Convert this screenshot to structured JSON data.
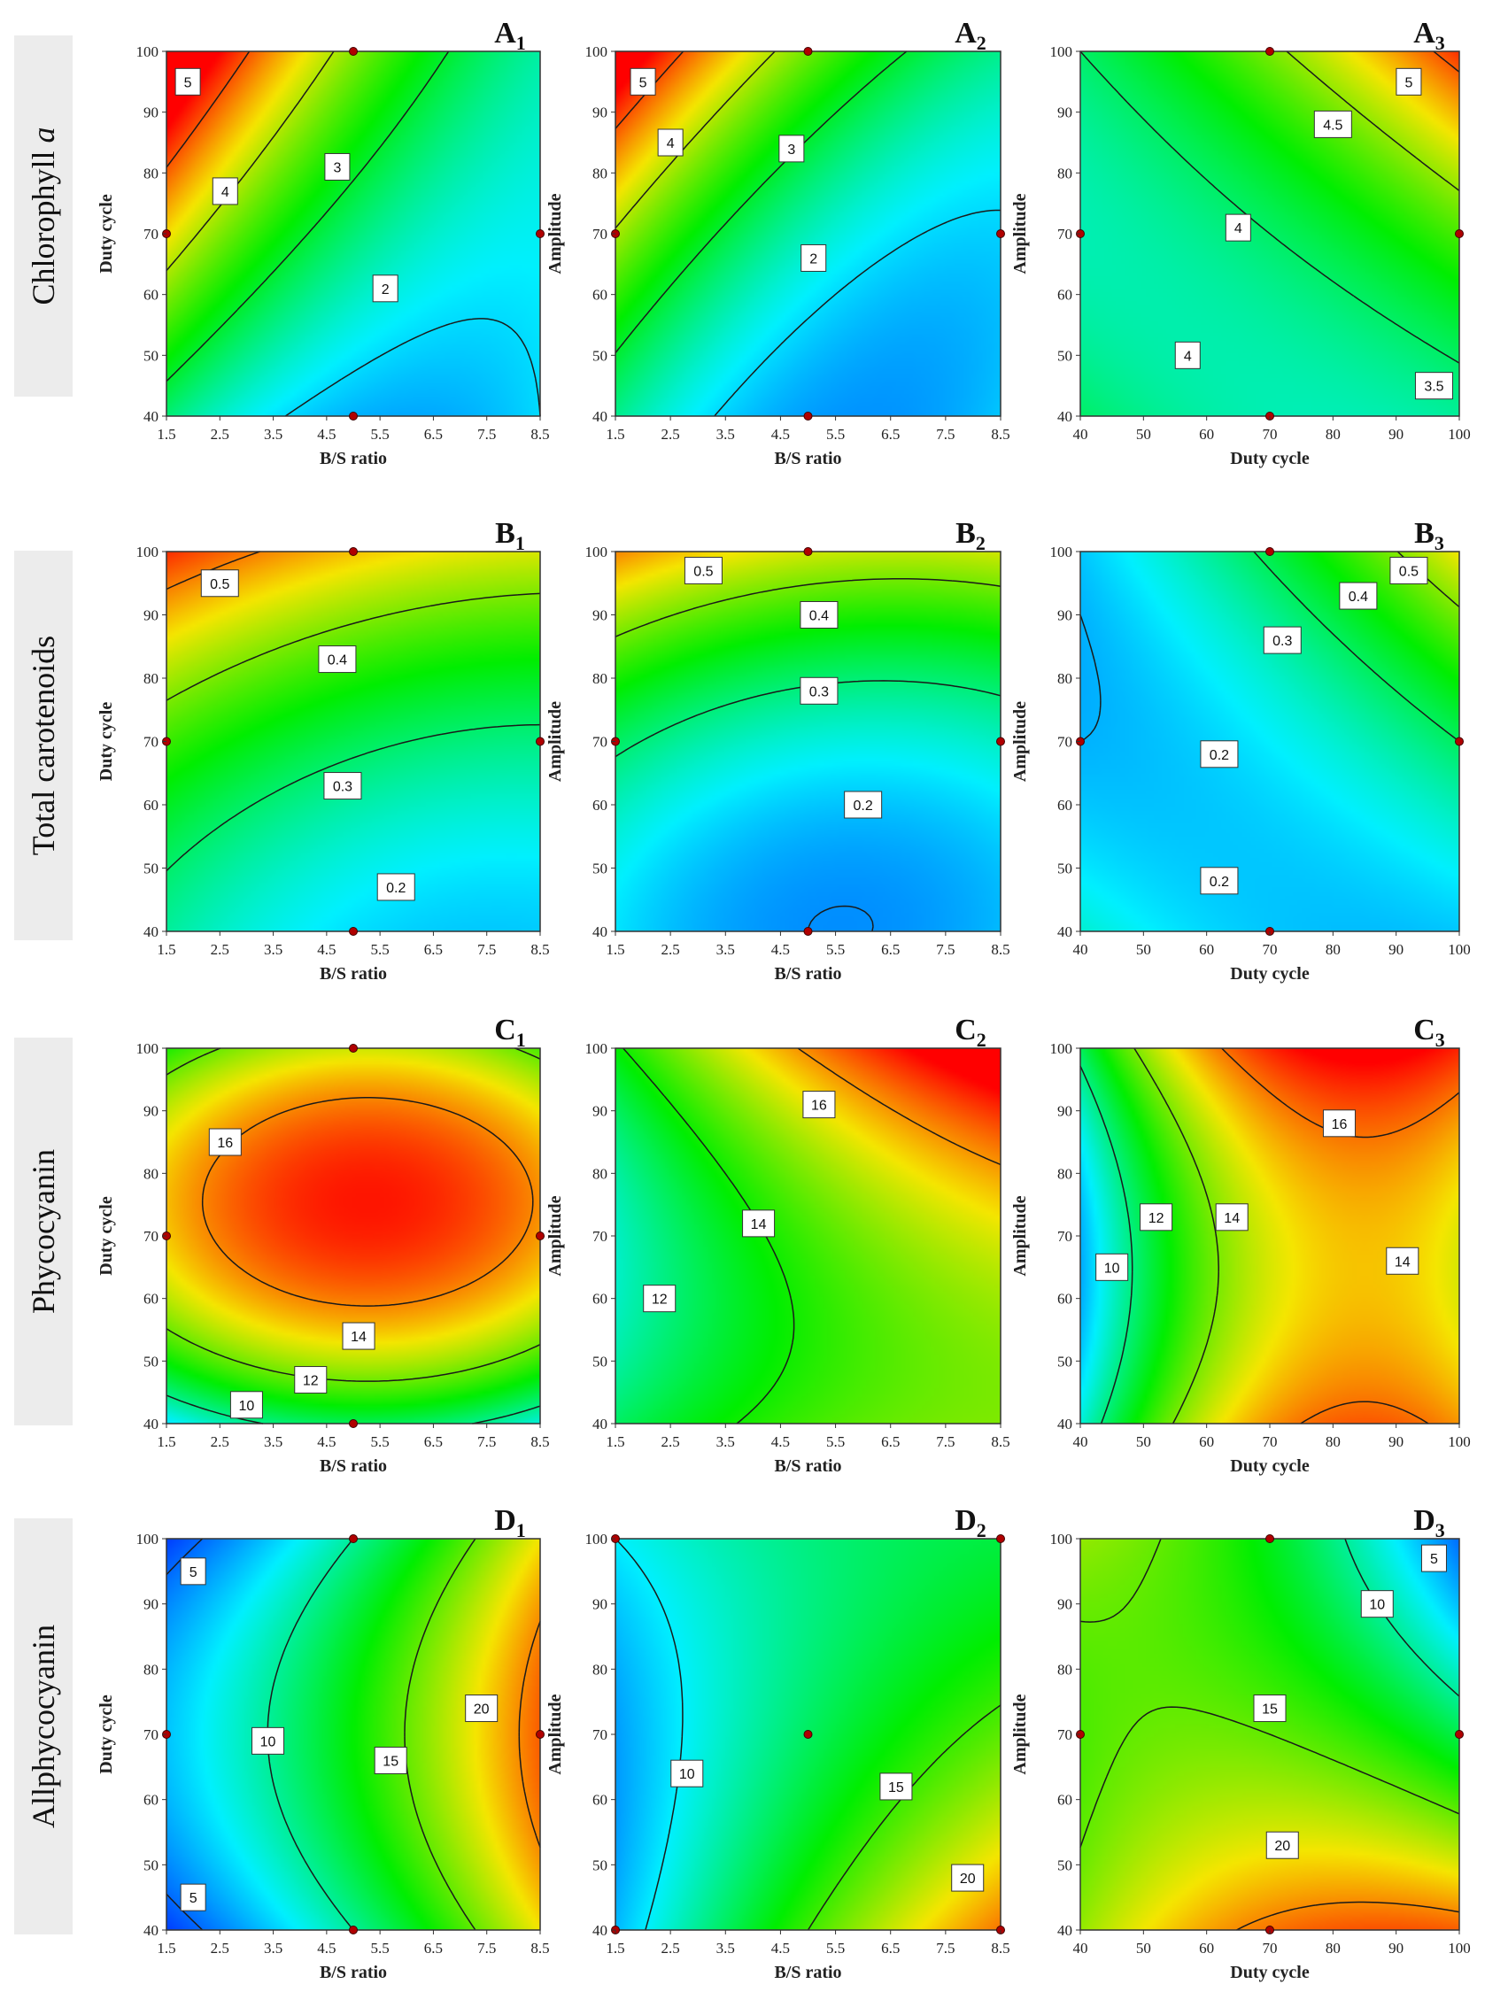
{
  "rows": [
    {
      "label": "Chlorophyll a",
      "label_main": "Chlorophyll ",
      "label_italic": "a"
    },
    {
      "label": "Total carotenoids"
    },
    {
      "label": "Phycocyanin"
    },
    {
      "label": "Allphycocyanin"
    }
  ],
  "colors": {
    "low": "#0010ff",
    "mid": "#00ee00",
    "high": "#ff0000",
    "row_label_bg": "#ececec"
  },
  "chart_data": [
    {
      "id": "A1",
      "title": "A",
      "sub": "1",
      "type": "contour",
      "xlabel": "B/S ratio",
      "ylabel": "Duty cycle",
      "xlim": [
        1.5,
        8.5
      ],
      "ylim": [
        40,
        100
      ],
      "xticks": [
        "1.5",
        "2.5",
        "3.5",
        "4.5",
        "5.5",
        "6.5",
        "7.5",
        "8.5"
      ],
      "yticks": [
        "40",
        "50",
        "60",
        "70",
        "80",
        "90",
        "100"
      ],
      "zrange": [
        1.0,
        5.4
      ],
      "model": {
        "c": 2.7,
        "a": -1.1,
        "b": 1.0,
        "ab": -0.75,
        "aa": 0.55,
        "bb": 0.1
      },
      "levels": [
        2,
        3,
        4,
        5
      ],
      "labels": [
        {
          "text": "5",
          "x": 1.9,
          "y": 95
        },
        {
          "text": "4",
          "x": 2.6,
          "y": 77
        },
        {
          "text": "3",
          "x": 4.7,
          "y": 81
        },
        {
          "text": "2",
          "x": 5.6,
          "y": 61
        }
      ],
      "design_points": [
        [
          5,
          100
        ],
        [
          1.5,
          70
        ],
        [
          8.5,
          70
        ],
        [
          5,
          40
        ]
      ]
    },
    {
      "id": "A2",
      "title": "A",
      "sub": "2",
      "type": "contour",
      "xlabel": "B/S ratio",
      "ylabel": "Amplitude",
      "xlim": [
        1.5,
        8.5
      ],
      "ylim": [
        40,
        100
      ],
      "xticks": [
        "1.5",
        "2.5",
        "3.5",
        "4.5",
        "5.5",
        "6.5",
        "7.5",
        "8.5"
      ],
      "yticks": [
        "40",
        "50",
        "60",
        "70",
        "80",
        "90",
        "100"
      ],
      "zrange": [
        1.0,
        5.4
      ],
      "model": {
        "c": 2.4,
        "a": -1.0,
        "b": 1.0,
        "ab": -0.65,
        "aa": 0.55,
        "bb": 0.3
      },
      "levels": [
        2,
        3,
        4,
        5
      ],
      "labels": [
        {
          "text": "5",
          "x": 2.0,
          "y": 95
        },
        {
          "text": "4",
          "x": 2.5,
          "y": 85
        },
        {
          "text": "3",
          "x": 4.7,
          "y": 84
        },
        {
          "text": "2",
          "x": 5.1,
          "y": 66
        }
      ],
      "design_points": [
        [
          5,
          100
        ],
        [
          1.5,
          70
        ],
        [
          8.5,
          70
        ],
        [
          5,
          40
        ]
      ]
    },
    {
      "id": "A3",
      "title": "A",
      "sub": "3",
      "type": "contour",
      "xlabel": "Duty cycle",
      "ylabel": "Amplitude",
      "xlim": [
        40,
        100
      ],
      "ylim": [
        40,
        100
      ],
      "xticks": [
        "40",
        "50",
        "60",
        "70",
        "80",
        "90",
        "100"
      ],
      "yticks": [
        "40",
        "50",
        "60",
        "70",
        "80",
        "90",
        "100"
      ],
      "zrange": [
        3.2,
        5.2
      ],
      "model": {
        "c": 4.0,
        "a": 0.25,
        "b": 0.3,
        "ab": 0.3,
        "aa": 0.1,
        "bb": 0.15
      },
      "levels": [
        3.5,
        4,
        4.5,
        5
      ],
      "labels": [
        {
          "text": "5",
          "x": 92,
          "y": 95
        },
        {
          "text": "4.5",
          "x": 80,
          "y": 88
        },
        {
          "text": "4",
          "x": 65,
          "y": 71
        },
        {
          "text": "4",
          "x": 57,
          "y": 50
        },
        {
          "text": "3.5",
          "x": 96,
          "y": 45
        }
      ],
      "design_points": [
        [
          70,
          100
        ],
        [
          40,
          70
        ],
        [
          100,
          70
        ],
        [
          70,
          40
        ]
      ]
    },
    {
      "id": "B1",
      "title": "B",
      "sub": "1",
      "type": "contour",
      "xlabel": "B/S ratio",
      "ylabel": "Duty cycle",
      "xlim": [
        1.5,
        8.5
      ],
      "ylim": [
        40,
        100
      ],
      "xticks": [
        "1.5",
        "2.5",
        "3.5",
        "4.5",
        "5.5",
        "6.5",
        "7.5",
        "8.5"
      ],
      "yticks": [
        "40",
        "50",
        "60",
        "70",
        "80",
        "90",
        "100"
      ],
      "zrange": [
        0.13,
        0.56
      ],
      "model": {
        "c": 0.31,
        "a": -0.04,
        "b": 0.12,
        "ab": -0.01,
        "aa": 0.02,
        "bb": 0.04
      },
      "levels": [
        0.2,
        0.3,
        0.4,
        0.5
      ],
      "labels": [
        {
          "text": "0.5",
          "x": 2.5,
          "y": 95
        },
        {
          "text": "0.4",
          "x": 4.7,
          "y": 83
        },
        {
          "text": "0.3",
          "x": 4.8,
          "y": 63
        },
        {
          "text": "0.2",
          "x": 5.8,
          "y": 47
        }
      ],
      "design_points": [
        [
          5,
          100
        ],
        [
          1.5,
          70
        ],
        [
          8.5,
          70
        ],
        [
          5,
          40
        ]
      ]
    },
    {
      "id": "B2",
      "title": "B",
      "sub": "2",
      "type": "contour",
      "xlabel": "B/S ratio",
      "ylabel": "Amplitude",
      "xlim": [
        1.5,
        8.5
      ],
      "ylim": [
        40,
        100
      ],
      "xticks": [
        "1.5",
        "2.5",
        "3.5",
        "4.5",
        "5.5",
        "6.5",
        "7.5",
        "8.5"
      ],
      "yticks": [
        "40",
        "50",
        "60",
        "70",
        "80",
        "90",
        "100"
      ],
      "zrange": [
        0.14,
        0.56
      ],
      "model": {
        "c": 0.26,
        "a": -0.02,
        "b": 0.12,
        "ab": -0.01,
        "aa": 0.03,
        "bb": 0.06
      },
      "levels": [
        0.2,
        0.3,
        0.4,
        0.5
      ],
      "labels": [
        {
          "text": "0.5",
          "x": 3.1,
          "y": 97
        },
        {
          "text": "0.4",
          "x": 5.2,
          "y": 90
        },
        {
          "text": "0.3",
          "x": 5.2,
          "y": 78
        },
        {
          "text": "0.2",
          "x": 6.0,
          "y": 60
        }
      ],
      "design_points": [
        [
          5,
          100
        ],
        [
          1.5,
          70
        ],
        [
          8.5,
          70
        ],
        [
          5,
          40
        ]
      ]
    },
    {
      "id": "B3",
      "title": "B",
      "sub": "3",
      "type": "contour",
      "xlabel": "Duty cycle",
      "ylabel": "Amplitude",
      "xlim": [
        40,
        100
      ],
      "ylim": [
        40,
        100
      ],
      "xticks": [
        "40",
        "50",
        "60",
        "70",
        "80",
        "90",
        "100"
      ],
      "yticks": [
        "40",
        "50",
        "60",
        "70",
        "80",
        "90",
        "100"
      ],
      "zrange": [
        0.12,
        0.56
      ],
      "model": {
        "c": 0.23,
        "a": 0.05,
        "b": 0.05,
        "ab": 0.07,
        "aa": 0.02,
        "bb": 0.03
      },
      "levels": [
        0.2,
        0.3,
        0.4,
        0.5
      ],
      "labels": [
        {
          "text": "0.5",
          "x": 92,
          "y": 97
        },
        {
          "text": "0.4",
          "x": 84,
          "y": 93
        },
        {
          "text": "0.3",
          "x": 72,
          "y": 86
        },
        {
          "text": "0.2",
          "x": 62,
          "y": 68
        },
        {
          "text": "0.2",
          "x": 62,
          "y": 48
        }
      ],
      "design_points": [
        [
          70,
          100
        ],
        [
          40,
          70
        ],
        [
          100,
          70
        ],
        [
          70,
          40
        ]
      ]
    },
    {
      "id": "C1",
      "title": "C",
      "sub": "1",
      "type": "contour",
      "xlabel": "B/S ratio",
      "ylabel": "Duty cycle",
      "xlim": [
        1.5,
        8.5
      ],
      "ylim": [
        40,
        100
      ],
      "xticks": [
        "1.5",
        "2.5",
        "3.5",
        "4.5",
        "5.5",
        "6.5",
        "7.5",
        "8.5"
      ],
      "yticks": [
        "40",
        "50",
        "60",
        "70",
        "80",
        "90",
        "100"
      ],
      "zrange": [
        9.0,
        17.2
      ],
      "model": {
        "c": 16.9,
        "a": 0.2,
        "b": 1.2,
        "ab": 0.0,
        "aa": -1.3,
        "bb": -3.3
      },
      "levels": [
        10,
        12,
        14,
        16
      ],
      "labels": [
        {
          "text": "16",
          "x": 2.6,
          "y": 85
        },
        {
          "text": "14",
          "x": 5.1,
          "y": 54
        },
        {
          "text": "12",
          "x": 4.2,
          "y": 47
        },
        {
          "text": "10",
          "x": 3.0,
          "y": 43
        }
      ],
      "design_points": [
        [
          5,
          100
        ],
        [
          1.5,
          70
        ],
        [
          8.5,
          70
        ],
        [
          5,
          40
        ]
      ]
    },
    {
      "id": "C2",
      "title": "C",
      "sub": "2",
      "type": "contour",
      "xlabel": "B/S ratio",
      "ylabel": "Amplitude",
      "xlim": [
        1.5,
        8.5
      ],
      "ylim": [
        40,
        100
      ],
      "xticks": [
        "1.5",
        "2.5",
        "3.5",
        "4.5",
        "5.5",
        "6.5",
        "7.5",
        "8.5"
      ],
      "yticks": [
        "40",
        "50",
        "60",
        "70",
        "80",
        "90",
        "100"
      ],
      "zrange": [
        10.8,
        17.0
      ],
      "model": {
        "c": 14.3,
        "a": 1.3,
        "b": 0.9,
        "ab": 0.6,
        "aa": -0.3,
        "bb": 0.9
      },
      "levels": [
        12,
        14,
        16
      ],
      "labels": [
        {
          "text": "16",
          "x": 5.2,
          "y": 91
        },
        {
          "text": "14",
          "x": 4.1,
          "y": 72
        },
        {
          "text": "12",
          "x": 2.3,
          "y": 60
        }
      ],
      "design_points": []
    },
    {
      "id": "C3",
      "title": "C",
      "sub": "3",
      "type": "contour",
      "xlabel": "Duty cycle",
      "ylabel": "Amplitude",
      "xlim": [
        40,
        100
      ],
      "ylim": [
        40,
        100
      ],
      "xticks": [
        "40",
        "50",
        "60",
        "70",
        "80",
        "90",
        "100"
      ],
      "yticks": [
        "40",
        "50",
        "60",
        "70",
        "80",
        "90",
        "100"
      ],
      "zrange": [
        9.0,
        17.0
      ],
      "model": {
        "c": 14.8,
        "a": 2.2,
        "b": 0.5,
        "ab": 0.0,
        "aa": -2.2,
        "bb": 1.4
      },
      "levels": [
        10,
        12,
        14,
        16
      ],
      "labels": [
        {
          "text": "16",
          "x": 81,
          "y": 88
        },
        {
          "text": "14",
          "x": 64,
          "y": 73
        },
        {
          "text": "14",
          "x": 91,
          "y": 66
        },
        {
          "text": "12",
          "x": 52,
          "y": 73
        },
        {
          "text": "10",
          "x": 45,
          "y": 65
        }
      ],
      "design_points": []
    },
    {
      "id": "D1",
      "title": "D",
      "sub": "1",
      "type": "contour",
      "xlabel": "B/S ratio",
      "ylabel": "Duty cycle",
      "xlim": [
        1.5,
        8.5
      ],
      "ylim": [
        40,
        100
      ],
      "xticks": [
        "1.5",
        "2.5",
        "3.5",
        "4.5",
        "5.5",
        "6.5",
        "7.5",
        "8.5"
      ],
      "yticks": [
        "40",
        "50",
        "60",
        "70",
        "80",
        "90",
        "100"
      ],
      "zrange": [
        3.0,
        23.0
      ],
      "model": {
        "c": 13.0,
        "a": 7.0,
        "b": 0.0,
        "ab": 0.0,
        "aa": 1.0,
        "bb": -3.0
      },
      "levels": [
        5,
        10,
        15,
        20
      ],
      "labels": [
        {
          "text": "5",
          "x": 2.0,
          "y": 95
        },
        {
          "text": "10",
          "x": 3.4,
          "y": 69
        },
        {
          "text": "15",
          "x": 5.7,
          "y": 66
        },
        {
          "text": "20",
          "x": 7.4,
          "y": 74
        },
        {
          "text": "5",
          "x": 2.0,
          "y": 45
        }
      ],
      "design_points": [
        [
          5,
          100
        ],
        [
          1.5,
          70
        ],
        [
          8.5,
          70
        ],
        [
          5,
          40
        ]
      ]
    },
    {
      "id": "D2",
      "title": "D",
      "sub": "2",
      "type": "contour",
      "xlabel": "B/S ratio",
      "ylabel": "Amplitude",
      "xlim": [
        1.5,
        8.5
      ],
      "ylim": [
        40,
        100
      ],
      "xticks": [
        "1.5",
        "2.5",
        "3.5",
        "4.5",
        "5.5",
        "6.5",
        "7.5",
        "8.5"
      ],
      "yticks": [
        "40",
        "50",
        "60",
        "70",
        "80",
        "90",
        "100"
      ],
      "zrange": [
        6.0,
        22.0
      ],
      "model": {
        "c": 12.5,
        "a": 3.5,
        "b": -1.5,
        "ab": -2.0,
        "aa": -0.5,
        "bb": 1.0
      },
      "levels": [
        10,
        15,
        20
      ],
      "labels": [
        {
          "text": "10",
          "x": 2.8,
          "y": 64
        },
        {
          "text": "15",
          "x": 6.6,
          "y": 62
        },
        {
          "text": "20",
          "x": 7.9,
          "y": 48
        }
      ],
      "design_points": [
        [
          1.5,
          100
        ],
        [
          8.5,
          100
        ],
        [
          5,
          70
        ],
        [
          1.5,
          40
        ],
        [
          8.5,
          40
        ]
      ]
    },
    {
      "id": "D3",
      "title": "D",
      "sub": "3",
      "type": "contour",
      "xlabel": "Duty cycle",
      "ylabel": "Amplitude",
      "xlim": [
        40,
        100
      ],
      "ylim": [
        40,
        100
      ],
      "xticks": [
        "40",
        "50",
        "60",
        "70",
        "80",
        "90",
        "100"
      ],
      "yticks": [
        "40",
        "50",
        "60",
        "70",
        "80",
        "90",
        "100"
      ],
      "zrange": [
        3.0,
        23.0
      ],
      "model": {
        "c": 15.0,
        "a": -1.5,
        "b": -4.0,
        "ab": -4.0,
        "aa": -2.0,
        "bb": 1.5
      },
      "levels": [
        5,
        10,
        15,
        20
      ],
      "labels": [
        {
          "text": "5",
          "x": 96,
          "y": 97
        },
        {
          "text": "10",
          "x": 87,
          "y": 90
        },
        {
          "text": "15",
          "x": 70,
          "y": 74
        },
        {
          "text": "20",
          "x": 72,
          "y": 53
        }
      ],
      "design_points": [
        [
          70,
          100
        ],
        [
          40,
          70
        ],
        [
          100,
          70
        ],
        [
          70,
          40
        ]
      ]
    }
  ]
}
